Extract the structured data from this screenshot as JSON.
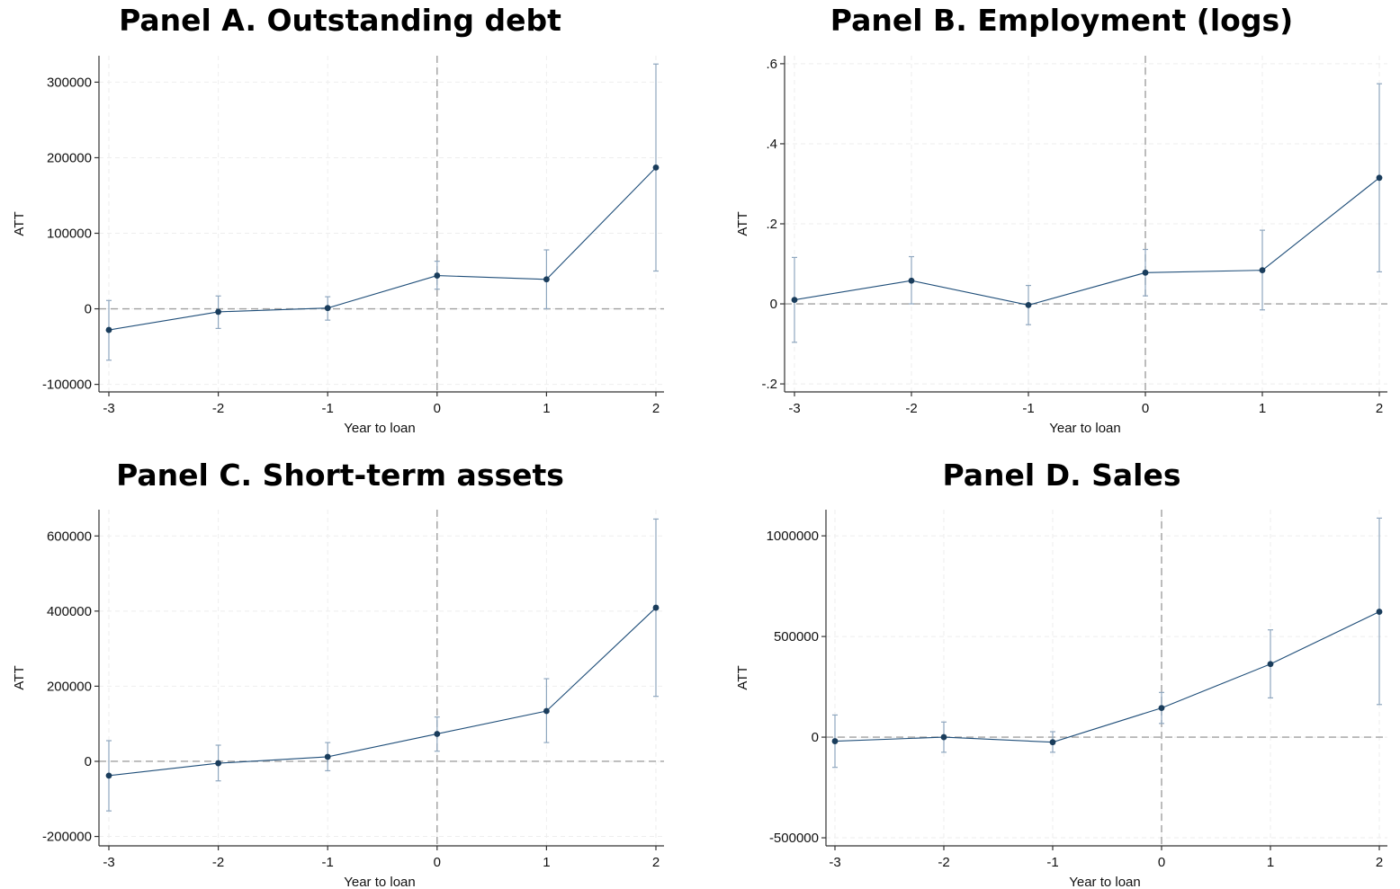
{
  "chart_data": [
    {
      "type": "line",
      "title": "Panel A. Outstanding debt",
      "xlabel": "Year to loan",
      "ylabel": "ATT",
      "x": [
        -3,
        -2,
        -1,
        0,
        1,
        2
      ],
      "xticks": [
        "-3",
        "-2",
        "-1",
        "0",
        "1",
        "2"
      ],
      "y": [
        -28000,
        -4000,
        1000,
        44000,
        39000,
        187000
      ],
      "ci_lower": [
        -68000,
        -26000,
        -15000,
        26000,
        0,
        50000
      ],
      "ci_upper": [
        11000,
        17000,
        16000,
        63000,
        78000,
        324000
      ],
      "ylim": [
        -110000,
        335000
      ],
      "yticks": [
        -100000,
        0,
        100000,
        200000,
        300000
      ],
      "ytick_labels": [
        "-100000",
        "0",
        "100000",
        "200000",
        "300000"
      ],
      "reference_lines": {
        "x": 0,
        "y": 0
      },
      "grid": true
    },
    {
      "type": "line",
      "title": "Panel B. Employment (logs)",
      "xlabel": "Year to loan",
      "ylabel": "ATT",
      "x": [
        -3,
        -2,
        -1,
        0,
        1,
        2
      ],
      "xticks": [
        "-3",
        "-2",
        "-1",
        "0",
        "1",
        "2"
      ],
      "y": [
        0.01,
        0.058,
        -0.003,
        0.078,
        0.084,
        0.315
      ],
      "ci_lower": [
        -0.096,
        0.0,
        -0.052,
        0.02,
        -0.015,
        0.08
      ],
      "ci_upper": [
        0.116,
        0.118,
        0.046,
        0.136,
        0.184,
        0.55
      ],
      "ylim": [
        -0.22,
        0.62
      ],
      "yticks": [
        -0.2,
        0,
        0.2,
        0.4,
        0.6
      ],
      "ytick_labels": [
        "-.2",
        "0",
        ".2",
        ".4",
        ".6"
      ],
      "reference_lines": {
        "x": 0,
        "y": 0
      },
      "grid": true
    },
    {
      "type": "line",
      "title": "Panel C. Short-term assets",
      "xlabel": "Year to loan",
      "ylabel": "ATT",
      "x": [
        -3,
        -2,
        -1,
        0,
        1,
        2
      ],
      "xticks": [
        "-3",
        "-2",
        "-1",
        "0",
        "1",
        "2"
      ],
      "y": [
        -38000,
        -5000,
        12000,
        73000,
        134000,
        409000
      ],
      "ci_lower": [
        -132000,
        -52000,
        -25000,
        27000,
        50000,
        173000
      ],
      "ci_upper": [
        55000,
        43000,
        50000,
        118000,
        220000,
        645000
      ],
      "ylim": [
        -225000,
        670000
      ],
      "yticks": [
        -200000,
        0,
        200000,
        400000,
        600000
      ],
      "ytick_labels": [
        "-200000",
        "0",
        "200000",
        "400000",
        "600000"
      ],
      "reference_lines": {
        "x": 0,
        "y": 0
      },
      "grid": true
    },
    {
      "type": "line",
      "title": "Panel D. Sales",
      "xlabel": "Year to loan",
      "ylabel": "ATT",
      "x": [
        -3,
        -2,
        -1,
        0,
        1,
        2
      ],
      "xticks": [
        "-3",
        "-2",
        "-1",
        "0",
        "1",
        "2"
      ],
      "y": [
        -20000,
        0,
        -25000,
        145000,
        363000,
        623000
      ],
      "ci_lower": [
        -150000,
        -75000,
        -75000,
        68000,
        195000,
        162000
      ],
      "ci_upper": [
        110000,
        75000,
        27000,
        222000,
        533000,
        1088000
      ],
      "ylim": [
        -540000,
        1130000
      ],
      "yticks": [
        -500000,
        0,
        500000,
        1000000
      ],
      "ytick_labels": [
        "-500000",
        "0",
        "500000",
        "1000000"
      ],
      "reference_lines": {
        "x": 0,
        "y": 0
      },
      "grid": true
    }
  ],
  "colors": {
    "line": "#1f4e79",
    "marker": "#1a3d5c",
    "ci": "#8fa7bf",
    "reference": "#a0a0a0",
    "grid": "#eeeeee",
    "axis": "#333333"
  }
}
